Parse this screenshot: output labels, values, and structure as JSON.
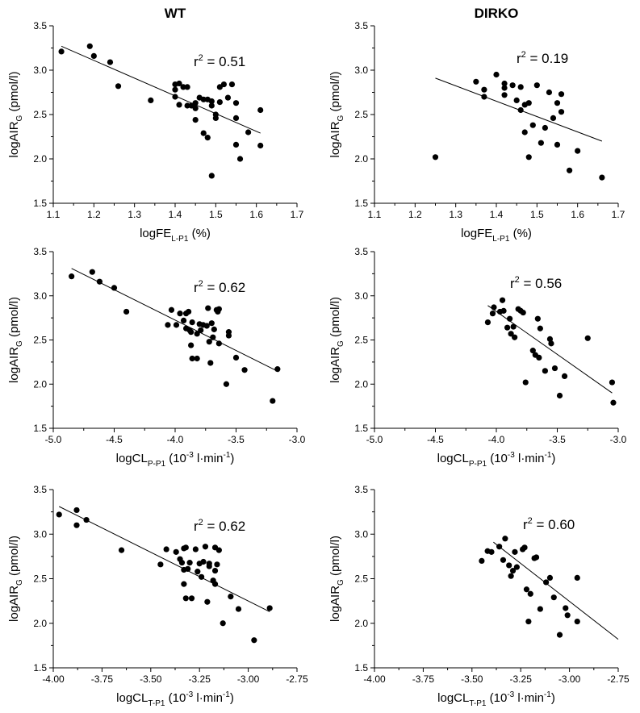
{
  "titles": {
    "left": "WT",
    "right": "DIRKO"
  },
  "chart_data": [
    {
      "type": "scatter",
      "id": "wt-fe",
      "column": "WT",
      "title": "WT",
      "r2": "0.51",
      "xlabel": {
        "main": "logFE",
        "sub": "L-P1",
        "suffix": " (%)",
        "sup": "",
        "tail": ""
      },
      "ylabel": "logAIR",
      "ylabel_sub": "G",
      "ylabel_suffix": " (pmol/l)",
      "xlim": [
        1.1,
        1.7
      ],
      "ylim": [
        1.5,
        3.5
      ],
      "xticks": [
        1.1,
        1.2,
        1.3,
        1.4,
        1.5,
        1.6,
        1.7
      ],
      "yticks": [
        1.5,
        2.0,
        2.5,
        3.0,
        3.5
      ],
      "xtick_labels": [
        "1.1",
        "1.2",
        "1.3",
        "1.4",
        "1.5",
        "1.6",
        "1.7"
      ],
      "ytick_labels": [
        "1.5",
        "2.0",
        "2.5",
        "3.0",
        "3.5"
      ],
      "fit": {
        "x": [
          1.12,
          1.61
        ],
        "y": [
          3.27,
          2.29
        ]
      },
      "points": [
        [
          1.12,
          3.21
        ],
        [
          1.19,
          3.27
        ],
        [
          1.2,
          3.16
        ],
        [
          1.24,
          3.09
        ],
        [
          1.26,
          2.82
        ],
        [
          1.34,
          2.66
        ],
        [
          1.4,
          2.84
        ],
        [
          1.4,
          2.78
        ],
        [
          1.4,
          2.7
        ],
        [
          1.41,
          2.85
        ],
        [
          1.42,
          2.81
        ],
        [
          1.41,
          2.61
        ],
        [
          1.43,
          2.81
        ],
        [
          1.43,
          2.6
        ],
        [
          1.44,
          2.6
        ],
        [
          1.45,
          2.63
        ],
        [
          1.45,
          2.57
        ],
        [
          1.45,
          2.44
        ],
        [
          1.46,
          2.69
        ],
        [
          1.47,
          2.67
        ],
        [
          1.47,
          2.29
        ],
        [
          1.48,
          2.24
        ],
        [
          1.48,
          2.67
        ],
        [
          1.49,
          2.6
        ],
        [
          1.49,
          2.65
        ],
        [
          1.49,
          1.81
        ],
        [
          1.5,
          2.46
        ],
        [
          1.5,
          2.5
        ],
        [
          1.51,
          2.64
        ],
        [
          1.51,
          2.81
        ],
        [
          1.52,
          2.84
        ],
        [
          1.53,
          2.69
        ],
        [
          1.54,
          2.84
        ],
        [
          1.55,
          2.63
        ],
        [
          1.55,
          2.46
        ],
        [
          1.55,
          2.16
        ],
        [
          1.56,
          2.0
        ],
        [
          1.58,
          2.3
        ],
        [
          1.61,
          2.55
        ],
        [
          1.61,
          2.15
        ]
      ]
    },
    {
      "type": "scatter",
      "id": "dirko-fe",
      "column": "DIRKO",
      "title": "DIRKO",
      "r2": "0.19",
      "xlabel": {
        "main": "logFE",
        "sub": "L-P1",
        "suffix": " (%)",
        "sup": "",
        "tail": ""
      },
      "ylabel": "logAIR",
      "ylabel_sub": "G",
      "ylabel_suffix": " (pmol/l)",
      "xlim": [
        1.1,
        1.7
      ],
      "ylim": [
        1.5,
        3.5
      ],
      "xticks": [
        1.1,
        1.2,
        1.3,
        1.4,
        1.5,
        1.6,
        1.7
      ],
      "yticks": [
        1.5,
        2.0,
        2.5,
        3.0,
        3.5
      ],
      "xtick_labels": [
        "1.1",
        "1.2",
        "1.3",
        "1.4",
        "1.5",
        "1.6",
        "1.7"
      ],
      "ytick_labels": [
        "1.5",
        "2.0",
        "2.5",
        "3.0",
        "3.5"
      ],
      "fit": {
        "x": [
          1.25,
          1.66
        ],
        "y": [
          2.91,
          2.2
        ]
      },
      "points": [
        [
          1.25,
          2.02
        ],
        [
          1.35,
          2.87
        ],
        [
          1.37,
          2.7
        ],
        [
          1.37,
          2.78
        ],
        [
          1.4,
          2.95
        ],
        [
          1.42,
          2.85
        ],
        [
          1.42,
          2.8
        ],
        [
          1.42,
          2.72
        ],
        [
          1.44,
          2.83
        ],
        [
          1.45,
          2.66
        ],
        [
          1.46,
          2.81
        ],
        [
          1.46,
          2.55
        ],
        [
          1.47,
          2.3
        ],
        [
          1.47,
          2.61
        ],
        [
          1.48,
          2.63
        ],
        [
          1.48,
          2.02
        ],
        [
          1.49,
          2.38
        ],
        [
          1.5,
          2.83
        ],
        [
          1.51,
          2.18
        ],
        [
          1.52,
          2.35
        ],
        [
          1.53,
          2.75
        ],
        [
          1.54,
          2.46
        ],
        [
          1.55,
          2.63
        ],
        [
          1.55,
          2.16
        ],
        [
          1.56,
          2.53
        ],
        [
          1.56,
          2.73
        ],
        [
          1.58,
          1.87
        ],
        [
          1.6,
          2.09
        ],
        [
          1.66,
          1.79
        ]
      ]
    },
    {
      "type": "scatter",
      "id": "wt-clp",
      "column": "WT",
      "title": "",
      "r2": "0.62",
      "xlabel": {
        "main": "logCL",
        "sub": "P-P1",
        "suffix": " (10",
        "sup": "-3",
        "tail": " l·min",
        "sup2": "-1",
        "close": ")"
      },
      "ylabel": "logAIR",
      "ylabel_sub": "G",
      "ylabel_suffix": " (pmol/l)",
      "xlim": [
        -5.0,
        -3.0
      ],
      "ylim": [
        1.5,
        3.5
      ],
      "xticks": [
        -5.0,
        -4.5,
        -4.0,
        -3.5,
        -3.0
      ],
      "yticks": [
        1.5,
        2.0,
        2.5,
        3.0,
        3.5
      ],
      "xtick_labels": [
        "-5.0",
        "-4.5",
        "-4.0",
        "-3.5",
        "-3.0"
      ],
      "ytick_labels": [
        "1.5",
        "2.0",
        "2.5",
        "3.0",
        "3.5"
      ],
      "fit": {
        "x": [
          -4.85,
          -3.15
        ],
        "y": [
          3.31,
          2.14
        ]
      },
      "points": [
        [
          -4.85,
          3.22
        ],
        [
          -4.68,
          3.27
        ],
        [
          -4.62,
          3.16
        ],
        [
          -4.5,
          3.09
        ],
        [
          -4.4,
          2.82
        ],
        [
          -4.06,
          2.67
        ],
        [
          -4.03,
          2.84
        ],
        [
          -3.99,
          2.67
        ],
        [
          -3.96,
          2.8
        ],
        [
          -3.93,
          2.72
        ],
        [
          -3.91,
          2.8
        ],
        [
          -3.91,
          2.63
        ],
        [
          -3.89,
          2.82
        ],
        [
          -3.88,
          2.61
        ],
        [
          -3.87,
          2.59
        ],
        [
          -3.87,
          2.44
        ],
        [
          -3.86,
          2.29
        ],
        [
          -3.86,
          2.7
        ],
        [
          -3.82,
          2.29
        ],
        [
          -3.82,
          2.57
        ],
        [
          -3.8,
          2.68
        ],
        [
          -3.79,
          2.61
        ],
        [
          -3.77,
          2.67
        ],
        [
          -3.74,
          2.66
        ],
        [
          -3.73,
          2.86
        ],
        [
          -3.72,
          2.48
        ],
        [
          -3.71,
          2.24
        ],
        [
          -3.7,
          2.69
        ],
        [
          -3.69,
          2.53
        ],
        [
          -3.68,
          2.62
        ],
        [
          -3.66,
          2.84
        ],
        [
          -3.65,
          2.82
        ],
        [
          -3.64,
          2.85
        ],
        [
          -3.64,
          2.46
        ],
        [
          -3.58,
          2.0
        ],
        [
          -3.56,
          2.55
        ],
        [
          -3.56,
          2.59
        ],
        [
          -3.5,
          2.3
        ],
        [
          -3.43,
          2.16
        ],
        [
          -3.2,
          1.81
        ],
        [
          -3.16,
          2.17
        ]
      ]
    },
    {
      "type": "scatter",
      "id": "dirko-clp",
      "column": "DIRKO",
      "title": "",
      "r2": "0.56",
      "xlabel": {
        "main": "logCL",
        "sub": "P-P1",
        "suffix": " (10",
        "sup": "-3",
        "tail": " l·min",
        "sup2": "-1",
        "close": ")"
      },
      "ylabel": "logAIR",
      "ylabel_sub": "G",
      "ylabel_suffix": " (pmol/l)",
      "xlim": [
        -5.0,
        -3.0
      ],
      "ylim": [
        1.5,
        3.5
      ],
      "xticks": [
        -5.0,
        -4.5,
        -4.0,
        -3.5,
        -3.0
      ],
      "yticks": [
        1.5,
        2.0,
        2.5,
        3.0,
        3.5
      ],
      "xtick_labels": [
        "-5.0",
        "-4.5",
        "-4.0",
        "-3.5",
        "-3.0"
      ],
      "ytick_labels": [
        "1.5",
        "2.0",
        "2.5",
        "3.0",
        "3.5"
      ],
      "fit": {
        "x": [
          -4.07,
          -3.05
        ],
        "y": [
          2.89,
          1.9
        ]
      },
      "points": [
        [
          -4.07,
          2.7
        ],
        [
          -4.03,
          2.8
        ],
        [
          -4.02,
          2.87
        ],
        [
          -3.97,
          2.82
        ],
        [
          -3.95,
          2.95
        ],
        [
          -3.94,
          2.83
        ],
        [
          -3.91,
          2.64
        ],
        [
          -3.89,
          2.74
        ],
        [
          -3.88,
          2.57
        ],
        [
          -3.86,
          2.65
        ],
        [
          -3.85,
          2.53
        ],
        [
          -3.82,
          2.85
        ],
        [
          -3.8,
          2.83
        ],
        [
          -3.78,
          2.81
        ],
        [
          -3.76,
          2.02
        ],
        [
          -3.7,
          2.38
        ],
        [
          -3.68,
          2.33
        ],
        [
          -3.66,
          2.74
        ],
        [
          -3.65,
          2.3
        ],
        [
          -3.64,
          2.63
        ],
        [
          -3.6,
          2.15
        ],
        [
          -3.56,
          2.51
        ],
        [
          -3.55,
          2.46
        ],
        [
          -3.52,
          2.18
        ],
        [
          -3.48,
          1.87
        ],
        [
          -3.44,
          2.09
        ],
        [
          -3.25,
          2.52
        ],
        [
          -3.05,
          2.02
        ],
        [
          -3.04,
          1.79
        ]
      ]
    },
    {
      "type": "scatter",
      "id": "wt-clt",
      "column": "WT",
      "title": "",
      "r2": "0.62",
      "xlabel": {
        "main": "logCL",
        "sub": "T-P1",
        "suffix": " (10",
        "sup": "-3",
        "tail": " l·min",
        "sup2": "-1",
        "close": ")"
      },
      "ylabel": "logAIR",
      "ylabel_sub": "G",
      "ylabel_suffix": " (pmol/l)",
      "xlim": [
        -4.0,
        -2.75
      ],
      "ylim": [
        1.5,
        3.5
      ],
      "xticks": [
        -4.0,
        -3.75,
        -3.5,
        -3.25,
        -3.0,
        -2.75
      ],
      "yticks": [
        1.5,
        2.0,
        2.5,
        3.0,
        3.5
      ],
      "xtick_labels": [
        "-4.00",
        "-3.75",
        "-3.50",
        "-3.25",
        "-3.00",
        "-2.75"
      ],
      "ytick_labels": [
        "1.5",
        "2.0",
        "2.5",
        "3.0",
        "3.5"
      ],
      "fit": {
        "x": [
          -3.97,
          -2.89
        ],
        "y": [
          3.31,
          2.13
        ]
      },
      "points": [
        [
          -3.97,
          3.22
        ],
        [
          -3.88,
          3.1
        ],
        [
          -3.88,
          3.27
        ],
        [
          -3.83,
          3.16
        ],
        [
          -3.65,
          2.82
        ],
        [
          -3.45,
          2.66
        ],
        [
          -3.42,
          2.83
        ],
        [
          -3.37,
          2.8
        ],
        [
          -3.35,
          2.72
        ],
        [
          -3.34,
          2.68
        ],
        [
          -3.33,
          2.84
        ],
        [
          -3.33,
          2.6
        ],
        [
          -3.33,
          2.44
        ],
        [
          -3.32,
          2.28
        ],
        [
          -3.32,
          2.85
        ],
        [
          -3.31,
          2.61
        ],
        [
          -3.3,
          2.68
        ],
        [
          -3.29,
          2.28
        ],
        [
          -3.27,
          2.83
        ],
        [
          -3.26,
          2.58
        ],
        [
          -3.25,
          2.67
        ],
        [
          -3.24,
          2.52
        ],
        [
          -3.23,
          2.69
        ],
        [
          -3.22,
          2.86
        ],
        [
          -3.21,
          2.24
        ],
        [
          -3.2,
          2.64
        ],
        [
          -3.2,
          2.67
        ],
        [
          -3.18,
          2.48
        ],
        [
          -3.17,
          2.85
        ],
        [
          -3.17,
          2.44
        ],
        [
          -3.17,
          2.59
        ],
        [
          -3.16,
          2.66
        ],
        [
          -3.15,
          2.82
        ],
        [
          -3.13,
          2.0
        ],
        [
          -3.09,
          2.3
        ],
        [
          -3.05,
          2.16
        ],
        [
          -2.97,
          1.81
        ],
        [
          -2.89,
          2.17
        ]
      ]
    },
    {
      "type": "scatter",
      "id": "dirko-clt",
      "column": "DIRKO",
      "title": "",
      "r2": "0.60",
      "xlabel": {
        "main": "logCL",
        "sub": "T-P1",
        "suffix": " (10",
        "sup": "-3",
        "tail": " l·min",
        "sup2": "-1",
        "close": ")"
      },
      "ylabel": "logAIR",
      "ylabel_sub": "G",
      "ylabel_suffix": " (pmol/l)",
      "xlim": [
        -4.0,
        -2.75
      ],
      "ylim": [
        1.5,
        3.5
      ],
      "xticks": [
        -4.0,
        -3.75,
        -3.5,
        -3.25,
        -3.0,
        -2.75
      ],
      "yticks": [
        1.5,
        2.0,
        2.5,
        3.0,
        3.5
      ],
      "xtick_labels": [
        "-4.00",
        "-3.75",
        "-3.50",
        "-3.25",
        "-3.00",
        "-2.75"
      ],
      "ytick_labels": [
        "1.5",
        "2.0",
        "2.5",
        "3.0",
        "3.5"
      ],
      "fit": {
        "x": [
          -3.39,
          -2.75
        ],
        "y": [
          2.91,
          1.82
        ]
      },
      "points": [
        [
          -3.45,
          2.7
        ],
        [
          -3.42,
          2.81
        ],
        [
          -3.4,
          2.8
        ],
        [
          -3.36,
          2.86
        ],
        [
          -3.34,
          2.71
        ],
        [
          -3.33,
          2.95
        ],
        [
          -3.31,
          2.65
        ],
        [
          -3.3,
          2.53
        ],
        [
          -3.29,
          2.59
        ],
        [
          -3.28,
          2.8
        ],
        [
          -3.27,
          2.63
        ],
        [
          -3.24,
          2.83
        ],
        [
          -3.23,
          2.85
        ],
        [
          -3.22,
          2.38
        ],
        [
          -3.21,
          2.02
        ],
        [
          -3.2,
          2.33
        ],
        [
          -3.18,
          2.73
        ],
        [
          -3.17,
          2.74
        ],
        [
          -3.15,
          2.16
        ],
        [
          -3.12,
          2.46
        ],
        [
          -3.1,
          2.51
        ],
        [
          -3.08,
          2.29
        ],
        [
          -3.05,
          1.87
        ],
        [
          -3.02,
          2.17
        ],
        [
          -3.01,
          2.09
        ],
        [
          -2.96,
          2.51
        ],
        [
          -2.96,
          2.02
        ]
      ]
    }
  ]
}
